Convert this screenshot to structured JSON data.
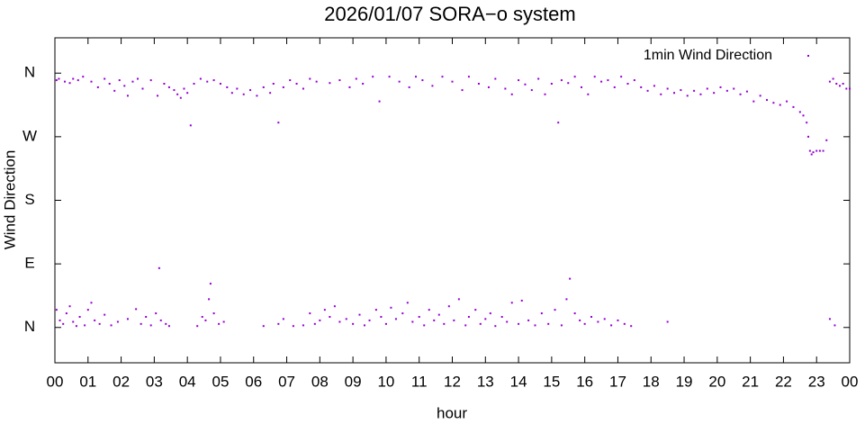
{
  "chart_data": {
    "type": "scatter",
    "title": "2026/01/07 SORA−o system",
    "xlabel": "hour",
    "ylabel": "Wind Direction",
    "xlim": [
      0,
      24
    ],
    "ylim": [
      -50,
      410
    ],
    "xticks": [
      {
        "value": 0,
        "label": "00"
      },
      {
        "value": 1,
        "label": "01"
      },
      {
        "value": 2,
        "label": "02"
      },
      {
        "value": 3,
        "label": "03"
      },
      {
        "value": 4,
        "label": "04"
      },
      {
        "value": 5,
        "label": "05"
      },
      {
        "value": 6,
        "label": "06"
      },
      {
        "value": 7,
        "label": "07"
      },
      {
        "value": 8,
        "label": "08"
      },
      {
        "value": 9,
        "label": "09"
      },
      {
        "value": 10,
        "label": "10"
      },
      {
        "value": 11,
        "label": "11"
      },
      {
        "value": 12,
        "label": "12"
      },
      {
        "value": 13,
        "label": "13"
      },
      {
        "value": 14,
        "label": "14"
      },
      {
        "value": 15,
        "label": "15"
      },
      {
        "value": 16,
        "label": "16"
      },
      {
        "value": 17,
        "label": "17"
      },
      {
        "value": 18,
        "label": "18"
      },
      {
        "value": 19,
        "label": "19"
      },
      {
        "value": 20,
        "label": "20"
      },
      {
        "value": 21,
        "label": "21"
      },
      {
        "value": 22,
        "label": "22"
      },
      {
        "value": 23,
        "label": "23"
      },
      {
        "value": 24,
        "label": "00"
      }
    ],
    "yticks": [
      {
        "value": 0,
        "label": "N"
      },
      {
        "value": 90,
        "label": "E"
      },
      {
        "value": 180,
        "label": "S"
      },
      {
        "value": 270,
        "label": "W"
      },
      {
        "value": 360,
        "label": "N"
      }
    ],
    "legend": "upper right",
    "series": [
      {
        "name": "1min Wind Direction",
        "color": "#9400d3",
        "x": [
          0.05,
          0.12,
          0.3,
          0.45,
          0.55,
          0.7,
          0.85,
          1.1,
          1.3,
          1.5,
          1.65,
          1.8,
          1.95,
          2.1,
          2.2,
          2.35,
          2.5,
          2.65,
          2.9,
          3.1,
          3.3,
          3.45,
          3.6,
          3.7,
          3.8,
          3.9,
          4.0,
          4.1,
          4.2,
          4.4,
          4.6,
          4.8,
          5.0,
          5.2,
          5.35,
          5.5,
          5.7,
          5.9,
          6.1,
          6.3,
          6.5,
          6.6,
          6.75,
          6.9,
          7.1,
          7.3,
          7.5,
          7.7,
          7.9,
          8.3,
          8.6,
          8.9,
          9.1,
          9.3,
          9.6,
          9.8,
          10.1,
          10.4,
          10.7,
          10.9,
          11.1,
          11.4,
          11.7,
          12.0,
          12.3,
          12.5,
          12.8,
          13.1,
          13.3,
          13.6,
          13.8,
          14.0,
          14.2,
          14.4,
          14.6,
          14.8,
          15.0,
          15.2,
          15.3,
          15.5,
          15.7,
          15.9,
          16.1,
          16.3,
          16.5,
          16.7,
          16.9,
          17.1,
          17.3,
          17.5,
          17.7,
          17.9,
          18.1,
          18.3,
          18.5,
          18.7,
          18.9,
          19.1,
          19.3,
          19.5,
          19.7,
          19.9,
          20.1,
          20.3,
          20.5,
          20.7,
          20.9,
          21.1,
          21.3,
          21.5,
          21.7,
          21.9,
          22.1,
          22.3,
          22.5,
          22.6,
          22.7,
          22.75,
          22.8,
          22.85,
          22.9,
          23.0,
          23.1,
          23.2,
          23.3,
          23.4,
          23.5,
          23.6,
          23.7,
          23.8,
          23.9,
          24.0,
          0.05,
          0.15,
          0.25,
          0.35,
          0.45,
          0.55,
          0.65,
          0.75,
          0.9,
          1.0,
          1.1,
          1.2,
          1.35,
          1.5,
          1.7,
          1.9,
          2.2,
          2.45,
          2.6,
          2.75,
          2.9,
          3.05,
          3.15,
          3.2,
          3.35,
          3.45,
          4.3,
          4.45,
          4.55,
          4.65,
          4.7,
          4.8,
          4.95,
          5.1,
          6.3,
          6.75,
          6.9,
          7.2,
          7.5,
          7.7,
          7.85,
          8.0,
          8.15,
          8.3,
          8.45,
          8.6,
          8.8,
          9.0,
          9.2,
          9.35,
          9.5,
          9.7,
          9.85,
          10.0,
          10.15,
          10.3,
          10.5,
          10.65,
          10.8,
          11.0,
          11.15,
          11.3,
          11.45,
          11.6,
          11.75,
          11.9,
          12.05,
          12.2,
          12.4,
          12.5,
          12.7,
          12.85,
          13.0,
          13.15,
          13.3,
          13.5,
          13.65,
          13.8,
          14.0,
          14.1,
          14.3,
          14.5,
          14.7,
          14.9,
          15.1,
          15.3,
          15.45,
          15.55,
          15.7,
          15.85,
          16.0,
          16.2,
          16.4,
          16.6,
          16.8,
          17.0,
          17.2,
          17.4,
          18.5,
          23.4,
          23.55
        ],
        "values": [
          350,
          352,
          348,
          346,
          352,
          350,
          355,
          348,
          340,
          352,
          345,
          335,
          350,
          342,
          328,
          348,
          352,
          338,
          350,
          328,
          345,
          340,
          336,
          330,
          325,
          338,
          332,
          286,
          345,
          352,
          348,
          350,
          345,
          340,
          332,
          338,
          330,
          336,
          328,
          340,
          332,
          345,
          290,
          340,
          350,
          345,
          338,
          352,
          348,
          346,
          350,
          340,
          352,
          345,
          355,
          320,
          355,
          348,
          340,
          355,
          350,
          342,
          355,
          348,
          336,
          355,
          345,
          340,
          352,
          338,
          330,
          350,
          344,
          336,
          352,
          330,
          345,
          290,
          350,
          346,
          355,
          340,
          330,
          355,
          348,
          350,
          340,
          355,
          345,
          350,
          340,
          335,
          342,
          330,
          338,
          332,
          336,
          328,
          335,
          330,
          338,
          332,
          340,
          335,
          338,
          330,
          334,
          320,
          328,
          322,
          318,
          315,
          320,
          312,
          305,
          300,
          290,
          270,
          250,
          245,
          248,
          250,
          250,
          250,
          265,
          348,
          352,
          345,
          342,
          345,
          338,
          338,
          25,
          10,
          5,
          20,
          30,
          8,
          2,
          15,
          3,
          25,
          35,
          10,
          5,
          18,
          3,
          8,
          12,
          26,
          5,
          15,
          3,
          20,
          84,
          10,
          5,
          2,
          2,
          15,
          10,
          40,
          62,
          20,
          5,
          8,
          2,
          5,
          12,
          2,
          3,
          20,
          5,
          10,
          25,
          15,
          30,
          8,
          12,
          5,
          18,
          3,
          10,
          25,
          15,
          5,
          28,
          12,
          20,
          35,
          8,
          15,
          3,
          25,
          10,
          18,
          5,
          30,
          10,
          40,
          3,
          15,
          25,
          5,
          12,
          20,
          2,
          15,
          8,
          35,
          5,
          38,
          10,
          3,
          20,
          5,
          25,
          3,
          40,
          69,
          20,
          10,
          5,
          15,
          8,
          12,
          3,
          10,
          5,
          2,
          8,
          12,
          3
        ]
      }
    ]
  }
}
